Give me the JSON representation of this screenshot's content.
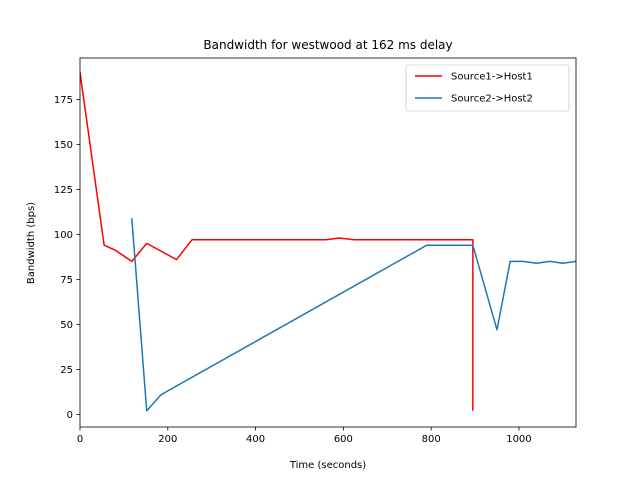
{
  "chart_data": {
    "type": "line",
    "title": "Bandwidth for westwood at 162 ms delay",
    "xlabel": "Time (seconds)",
    "ylabel": "Bandwidth (bps)",
    "xlim": [
      0,
      1130
    ],
    "ylim": [
      -7,
      198
    ],
    "xticks": [
      0,
      200,
      400,
      600,
      800,
      1000
    ],
    "yticks": [
      0,
      25,
      50,
      75,
      100,
      125,
      150,
      175
    ],
    "legend_position": "upper-right",
    "grid": false,
    "series": [
      {
        "name": "Source1->Host1",
        "color": "#ff0000",
        "x": [
          0,
          55,
          82,
          118,
          152,
          220,
          255,
          560,
          590,
          625,
          895,
          895
        ],
        "y": [
          190,
          94,
          91,
          85,
          95,
          86,
          97,
          97,
          98,
          97,
          97,
          2
        ]
      },
      {
        "name": "Source2->Host2",
        "color": "#1f77b4",
        "x": [
          118,
          152,
          185,
          790,
          895,
          950,
          980,
          1010,
          1040,
          1070,
          1100,
          1130
        ],
        "y": [
          109,
          2,
          11,
          94,
          94,
          47,
          85,
          85,
          84,
          85,
          84,
          85
        ]
      }
    ]
  }
}
